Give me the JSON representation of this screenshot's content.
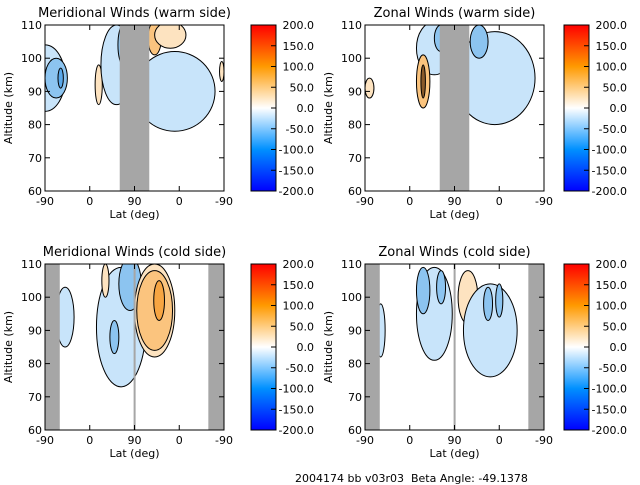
{
  "chart_data": [
    {
      "type": "heatmap",
      "title": "Meridional Winds (warm side)",
      "xlabel": "Lat (deg)",
      "ylabel": "Altitude (km)",
      "xticks": [
        "-90",
        "0",
        "90",
        "0",
        "-90"
      ],
      "yticks": [
        "60",
        "70",
        "80",
        "90",
        "100",
        "110"
      ],
      "ylim": [
        60,
        110
      ],
      "colorbar": {
        "ticks": [
          "200.0",
          "150.0",
          "100.0",
          "50.0",
          "0.0",
          "-50.0",
          "-100.0",
          "-150.0",
          "-200.0"
        ],
        "range": [
          -200,
          200
        ]
      }
    },
    {
      "type": "heatmap",
      "title": "Zonal Winds (warm side)",
      "xlabel": "Lat (deg)",
      "ylabel": "Altitude (km)",
      "xticks": [
        "-90",
        "0",
        "90",
        "0",
        "-90"
      ],
      "yticks": [
        "60",
        "70",
        "80",
        "90",
        "100",
        "110"
      ],
      "ylim": [
        60,
        110
      ],
      "colorbar": {
        "ticks": [
          "200.0",
          "150.0",
          "100.0",
          "50.0",
          "0.0",
          "-50.0",
          "-100.0",
          "-150.0",
          "-200.0"
        ],
        "range": [
          -200,
          200
        ]
      }
    },
    {
      "type": "heatmap",
      "title": "Meridional Winds (cold side)",
      "xlabel": "Lat (deg)",
      "ylabel": "Altitude (km)",
      "xticks": [
        "-90",
        "0",
        "90",
        "0",
        "-90"
      ],
      "yticks": [
        "60",
        "70",
        "80",
        "90",
        "100",
        "110"
      ],
      "ylim": [
        60,
        110
      ],
      "colorbar": {
        "ticks": [
          "200.0",
          "150.0",
          "100.0",
          "50.0",
          "0.0",
          "-50.0",
          "-100.0",
          "-150.0",
          "-200.0"
        ],
        "range": [
          -200,
          200
        ]
      }
    },
    {
      "type": "heatmap",
      "title": "Zonal Winds (cold side)",
      "xlabel": "Lat (deg)",
      "ylabel": "Altitude (km)",
      "xticks": [
        "-90",
        "0",
        "90",
        "0",
        "-90"
      ],
      "yticks": [
        "60",
        "70",
        "80",
        "90",
        "100",
        "110"
      ],
      "ylim": [
        60,
        110
      ],
      "colorbar": {
        "ticks": [
          "200.0",
          "150.0",
          "100.0",
          "50.0",
          "0.0",
          "-50.0",
          "-100.0",
          "-150.0",
          "-200.0"
        ],
        "range": [
          -200,
          200
        ]
      }
    }
  ],
  "footer": {
    "id": "2004174 bb v03r03",
    "beta": "Beta Angle: -49.1378"
  },
  "colors": {
    "neg_light": "#c8e4fa",
    "neg_mid": "#8cc4f0",
    "neg_dark": "#5aa8ea",
    "pos_light": "#fde3c0",
    "pos_mid": "#fbc47e",
    "pos_dark": "#f7a542",
    "nodata": "#a6a6a6"
  }
}
